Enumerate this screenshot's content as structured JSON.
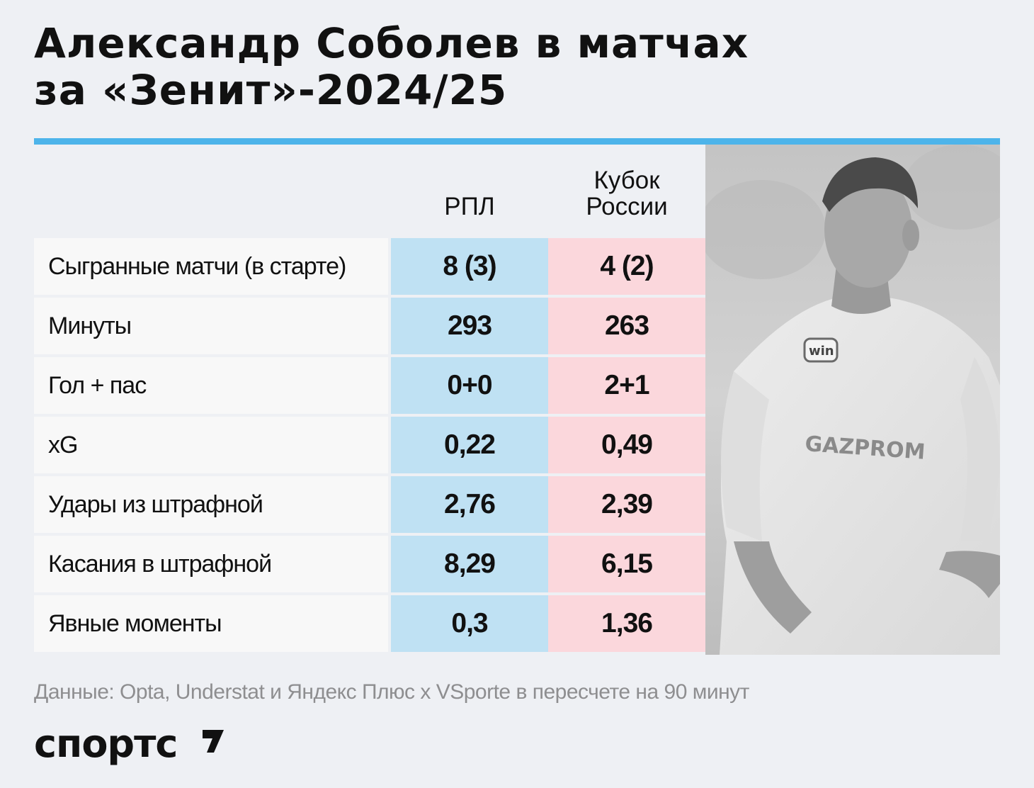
{
  "title": {
    "line1": "Александр Соболев в матчах",
    "line2": "за «Зенит»-2024/25"
  },
  "columns": {
    "rpl": "РПЛ",
    "cup_line1": "Кубок",
    "cup_line2": "России"
  },
  "rows": [
    {
      "label": "Сыгранные матчи (в старте)",
      "rpl": "8 (3)",
      "cup": "4 (2)"
    },
    {
      "label": "Минуты",
      "rpl": "293",
      "cup": "263"
    },
    {
      "label": "Гол + пас",
      "rpl": "0+0",
      "cup": "2+1"
    },
    {
      "label": "xG",
      "rpl": "0,22",
      "cup": "0,49"
    },
    {
      "label": "Удары из штрафной",
      "rpl": "2,76",
      "cup": "2,39"
    },
    {
      "label": "Касания в штрафной",
      "rpl": "8,29",
      "cup": "6,15"
    },
    {
      "label": "Явные моменты",
      "rpl": "0,3",
      "cup": "1,36"
    }
  ],
  "footnote": "Данные: Opta, Understat и Яндекс Плюс x VSporte в пересчете на 90 минут",
  "brand": {
    "logo": "спортс"
  },
  "photo": {
    "sponsor_text": "GAZPROM",
    "badge_text": "win"
  },
  "colors": {
    "accent": "#4db4ea",
    "rpl_cell": "#bfe1f3",
    "cup_cell": "#fbd7dc",
    "background": "#eef0f4"
  }
}
